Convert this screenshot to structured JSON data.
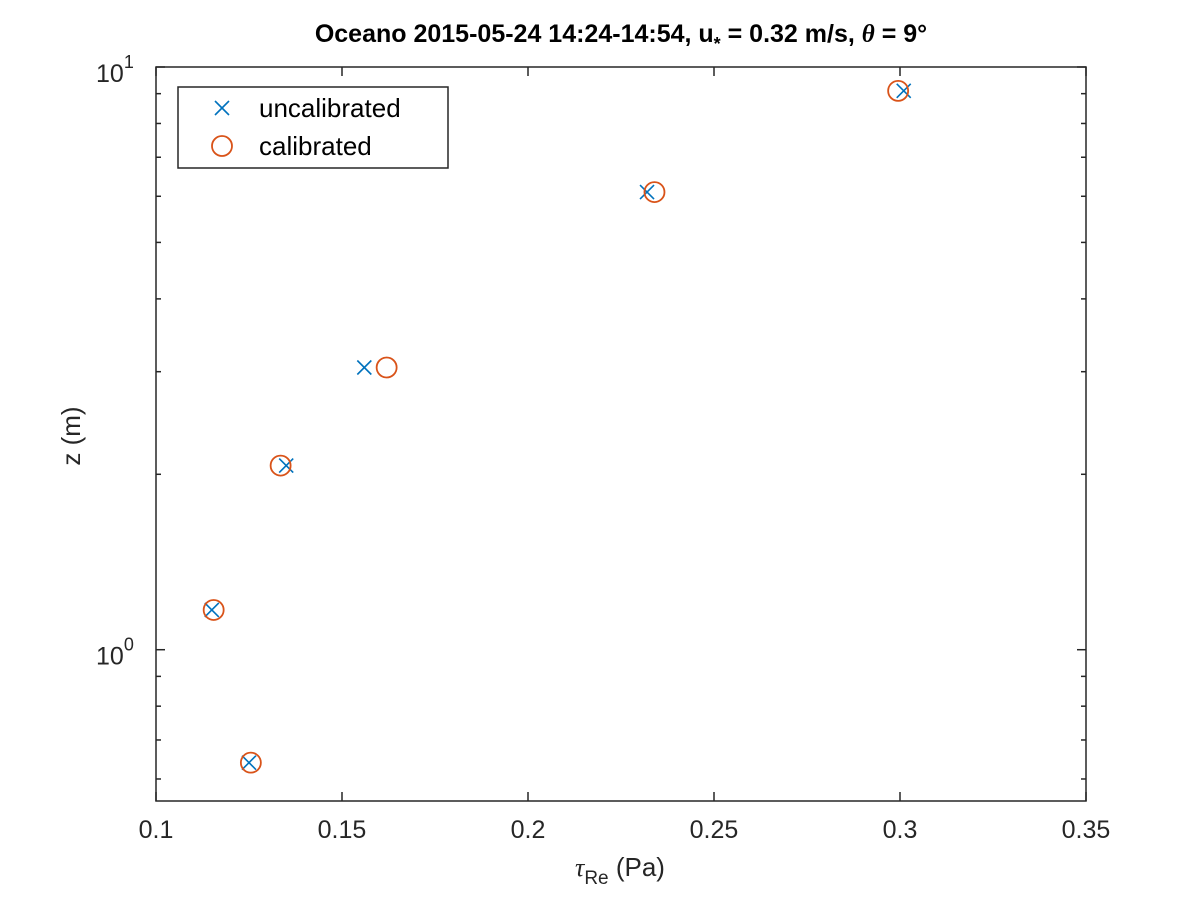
{
  "chart_data": {
    "type": "scatter",
    "title": "Oceano 2015-05-24 14:24-14:54, u* = 0.32 m/s, θ = 9°",
    "title_parts": {
      "prefix": "Oceano 2015-05-24 14:24-14:54, u",
      "ustar_subscript": "*",
      "middle": " = 0.32 m/s, ",
      "theta_symbol": "θ",
      "suffix": " = 9°"
    },
    "xlabel": "τRe (Pa)",
    "xlabel_parts": {
      "symbol": "τ",
      "subscript": "Re",
      "unit": " (Pa)"
    },
    "ylabel": "z (m)",
    "xlim": [
      0.1,
      0.35
    ],
    "ylim": [
      0.55,
      10
    ],
    "yscale": "log",
    "xticks": [
      0.1,
      0.15,
      0.2,
      0.25,
      0.3,
      0.35
    ],
    "xtick_labels": [
      "0.1",
      "0.15",
      "0.2",
      "0.25",
      "0.3",
      "0.35"
    ],
    "yticks_major": [
      {
        "value": 1,
        "base": "10",
        "exp": "0"
      },
      {
        "value": 10,
        "base": "10",
        "exp": "1"
      }
    ],
    "yticks_minor": [
      0.6,
      0.7,
      0.8,
      0.9,
      2,
      3,
      4,
      5,
      6,
      7,
      8,
      9
    ],
    "grid": false,
    "legend_position": "top-left",
    "series": [
      {
        "name": "uncalibrated",
        "marker": "x",
        "color": "#0072BD",
        "points": [
          {
            "x": 0.125,
            "y": 0.64
          },
          {
            "x": 0.115,
            "y": 1.17
          },
          {
            "x": 0.135,
            "y": 2.07
          },
          {
            "x": 0.156,
            "y": 3.05
          },
          {
            "x": 0.232,
            "y": 6.1
          },
          {
            "x": 0.301,
            "y": 9.1
          }
        ]
      },
      {
        "name": "calibrated",
        "marker": "o",
        "color": "#D95319",
        "points": [
          {
            "x": 0.1255,
            "y": 0.64
          },
          {
            "x": 0.1155,
            "y": 1.17
          },
          {
            "x": 0.1335,
            "y": 2.07
          },
          {
            "x": 0.162,
            "y": 3.05
          },
          {
            "x": 0.234,
            "y": 6.1
          },
          {
            "x": 0.2995,
            "y": 9.1
          }
        ]
      }
    ]
  }
}
